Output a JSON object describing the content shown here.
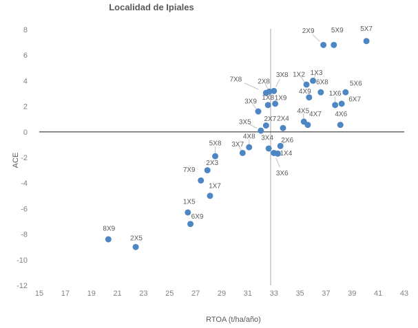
{
  "chart_data": {
    "type": "scatter",
    "title": "Localidad de Ipiales",
    "xlabel": "RTOA (t/ha/año)",
    "ylabel": "ACE",
    "xlim": [
      15,
      43
    ],
    "ylim": [
      -12,
      8
    ],
    "x_ticks": [
      15,
      17,
      19,
      21,
      23,
      25,
      27,
      29,
      31,
      33,
      35,
      37,
      39,
      41,
      43
    ],
    "y_ticks": [
      8,
      6,
      4,
      2,
      0,
      -2,
      -4,
      -6,
      -8,
      -10,
      -12
    ],
    "grid": false,
    "legend": "none",
    "reference_lines": {
      "horizontal_y": 0,
      "vertical_x": 32.75
    },
    "colors": {
      "point": "#4E86C4",
      "point_label": "#595959",
      "tick_label": "#808080",
      "axis_title": "#595959",
      "title": "#595959",
      "zero_line": "#333333",
      "vertical_line": "#A6A6A6",
      "leader_line": "#BFBFBF",
      "background": "#FFFFFF"
    },
    "points": [
      {
        "label": "1X2",
        "x": 35.5,
        "y": 3.7,
        "lx": -11,
        "ly": -15,
        "leader": true
      },
      {
        "label": "1X3",
        "x": 36.0,
        "y": 4.0,
        "lx": 5,
        "ly": -12,
        "leader": true
      },
      {
        "label": "1X4",
        "x": 33.3,
        "y": -1.7,
        "lx": 12,
        "ly": -1,
        "leader": false
      },
      {
        "label": "1X5",
        "x": 26.4,
        "y": -6.3,
        "lx": 2,
        "ly": -16,
        "leader": false
      },
      {
        "label": "1X6",
        "x": 37.7,
        "y": 2.1,
        "lx": 0,
        "ly": -17,
        "leader": true
      },
      {
        "label": "1X7",
        "x": 28.1,
        "y": -5.0,
        "lx": 7,
        "ly": -15,
        "leader": false
      },
      {
        "label": "1X8",
        "x": 32.55,
        "y": 2.1,
        "lx": 0,
        "ly": -11,
        "leader": false
      },
      {
        "label": "1X9",
        "x": 33.1,
        "y": 2.2,
        "lx": 8,
        "ly": -9,
        "leader": false
      },
      {
        "label": "2X3",
        "x": 27.9,
        "y": -3.0,
        "lx": 7,
        "ly": -11,
        "leader": false
      },
      {
        "label": "2X4",
        "x": 33.7,
        "y": 0.3,
        "lx": 0,
        "ly": -14,
        "leader": false
      },
      {
        "label": "2X5",
        "x": 22.4,
        "y": -9.0,
        "lx": 1,
        "ly": -13,
        "leader": false
      },
      {
        "label": "2X6",
        "x": 33.5,
        "y": -1.1,
        "lx": 10,
        "ly": -9,
        "leader": true
      },
      {
        "label": "2X7",
        "x": 32.4,
        "y": 0.5,
        "lx": 6,
        "ly": -10,
        "leader": false
      },
      {
        "label": "2X8",
        "x": 32.65,
        "y": 3.15,
        "lx": -8,
        "ly": -15,
        "leader": true
      },
      {
        "label": "2X9",
        "x": 36.8,
        "y": 6.8,
        "lx": -22,
        "ly": -21,
        "leader": true
      },
      {
        "label": "3X4",
        "x": 32.6,
        "y": -1.3,
        "lx": -2,
        "ly": -16,
        "leader": false
      },
      {
        "label": "3X5",
        "x": 32.0,
        "y": 0.1,
        "lx": -23,
        "ly": -13,
        "leader": true
      },
      {
        "label": "3X6",
        "x": 33.0,
        "y": -1.65,
        "lx": 12,
        "ly": 29,
        "leader": true
      },
      {
        "label": "3X7",
        "x": 30.6,
        "y": -1.65,
        "lx": -7,
        "ly": -13,
        "leader": true
      },
      {
        "label": "3X8",
        "x": 33.0,
        "y": 3.2,
        "lx": 12,
        "ly": -24,
        "leader": true
      },
      {
        "label": "3X9",
        "x": 31.8,
        "y": 1.6,
        "lx": -11,
        "ly": -15,
        "leader": true
      },
      {
        "label": "4X5",
        "x": 35.3,
        "y": 0.8,
        "lx": -1,
        "ly": -16,
        "leader": true
      },
      {
        "label": "4X6",
        "x": 38.1,
        "y": 0.55,
        "lx": 1,
        "ly": -16,
        "leader": false
      },
      {
        "label": "4X7",
        "x": 35.6,
        "y": 0.55,
        "lx": 11,
        "ly": -16,
        "leader": false
      },
      {
        "label": "4X8",
        "x": 31.1,
        "y": -1.2,
        "lx": 0,
        "ly": -16,
        "leader": true
      },
      {
        "label": "4X9",
        "x": 35.7,
        "y": 2.7,
        "lx": -6,
        "ly": -9,
        "leader": false
      },
      {
        "label": "5X6",
        "x": 38.5,
        "y": 3.1,
        "lx": 15,
        "ly": -13,
        "leader": false
      },
      {
        "label": "5X7",
        "x": 40.1,
        "y": 7.1,
        "lx": 0,
        "ly": -18,
        "leader": false
      },
      {
        "label": "5X8",
        "x": 28.5,
        "y": -1.9,
        "lx": 0,
        "ly": -19,
        "leader": true
      },
      {
        "label": "5X9",
        "x": 37.6,
        "y": 6.8,
        "lx": 5,
        "ly": -22,
        "leader": false
      },
      {
        "label": "6X7",
        "x": 38.2,
        "y": 2.2,
        "lx": 19,
        "ly": -7,
        "leader": false
      },
      {
        "label": "6X8",
        "x": 36.6,
        "y": 3.1,
        "lx": 2,
        "ly": -15,
        "leader": false
      },
      {
        "label": "6X9",
        "x": 26.6,
        "y": -7.2,
        "lx": 10,
        "ly": -11,
        "leader": false
      },
      {
        "label": "7X8",
        "x": 32.4,
        "y": 3.05,
        "lx": -44,
        "ly": -20,
        "leader": true
      },
      {
        "label": "7X9",
        "x": 27.4,
        "y": -3.8,
        "lx": -17,
        "ly": -16,
        "leader": false
      },
      {
        "label": "8X9",
        "x": 20.3,
        "y": -8.4,
        "lx": 1,
        "ly": -16,
        "leader": false
      }
    ]
  }
}
